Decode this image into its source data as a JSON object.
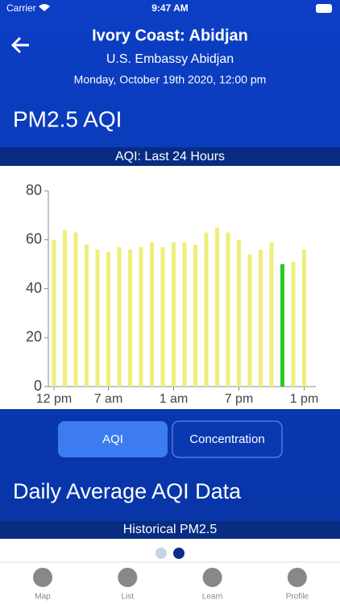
{
  "status_bar": {
    "carrier": "Carrier",
    "time": "9:47 AM"
  },
  "header": {
    "title": "Ivory Coast: Abidjan",
    "station": "U.S. Embassy Abidjan",
    "datetime": "Monday, October 19th 2020, 12:00 pm"
  },
  "section_title": "PM2.5 AQI",
  "chart_data": {
    "type": "bar",
    "title": "AQI: Last 24 Hours",
    "categories": [
      "12 pm",
      null,
      null,
      null,
      null,
      "7 am",
      null,
      null,
      null,
      null,
      null,
      "1 am",
      null,
      null,
      null,
      null,
      null,
      "7 pm",
      null,
      null,
      null,
      null,
      null,
      "1 pm"
    ],
    "values": [
      60,
      64,
      63,
      58,
      56,
      55,
      57,
      56,
      57,
      59,
      57,
      59,
      59,
      58,
      63,
      65,
      63,
      60,
      54,
      56,
      59,
      50,
      51,
      56
    ],
    "colors": [
      "#eeee7a",
      "#eeee7a",
      "#eeee7a",
      "#eeee7a",
      "#eeee7a",
      "#eeee7a",
      "#eeee7a",
      "#eeee7a",
      "#eeee7a",
      "#eeee7a",
      "#eeee7a",
      "#eeee7a",
      "#eeee7a",
      "#eeee7a",
      "#eeee7a",
      "#eeee7a",
      "#eeee7a",
      "#eeee7a",
      "#eeee7a",
      "#eeee7a",
      "#eeee7a",
      "#22cc22",
      "#eeee7a",
      "#eeee7a"
    ],
    "ylim": [
      0,
      80
    ],
    "yticks": [
      0,
      20,
      40,
      60,
      80
    ]
  },
  "toggle": {
    "options": [
      "AQI",
      "Concentration"
    ],
    "selected": 0
  },
  "daily_title": "Daily Average AQI Data",
  "daily_subtitle": "Historical PM2.5",
  "page_indicator": {
    "pages": 2,
    "current": 1
  },
  "tabs": [
    "Map",
    "List",
    "Learn",
    "Profile"
  ]
}
